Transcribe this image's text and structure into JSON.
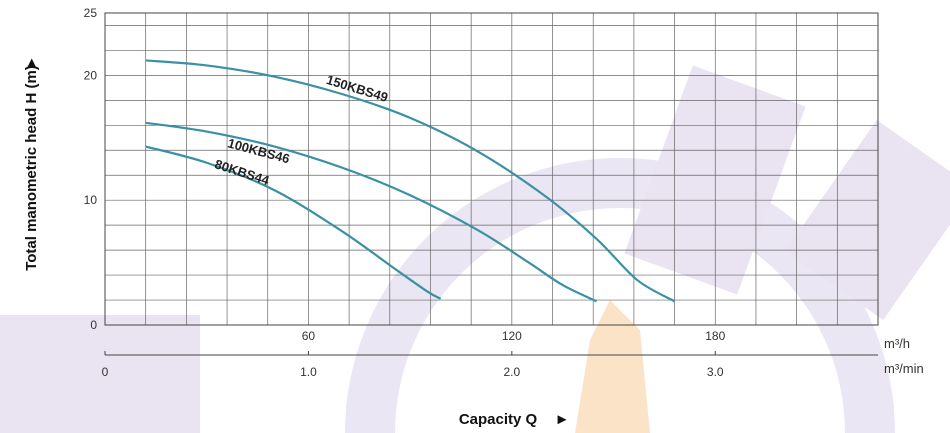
{
  "chart_data": {
    "type": "line",
    "title": "",
    "ylabel": "Total manometric head H (m)",
    "xlabel": "Capacity Q",
    "ylim": [
      0,
      25
    ],
    "yticks": [
      0,
      10,
      20,
      25
    ],
    "xlim": [
      0,
      228
    ],
    "xticks": [
      60,
      120,
      180
    ],
    "x_unit": "m³/h",
    "x2_unit": "m³/min",
    "x2lim": [
      0,
      3.8
    ],
    "x2ticks": [
      0,
      1.0,
      2.0,
      3.0
    ],
    "x2tick_labels": [
      "0",
      "1.0",
      "2.0",
      "3.0"
    ],
    "grid": true,
    "series": [
      {
        "name": "150KBS49",
        "x": [
          12,
          30,
          50,
          70,
          90,
          110,
          130,
          145,
          157,
          168
        ],
        "y": [
          21.2,
          20.8,
          19.9,
          18.5,
          16.6,
          13.9,
          10.3,
          6.9,
          3.6,
          1.9
        ]
      },
      {
        "name": "100KBS46",
        "x": [
          12,
          30,
          50,
          70,
          90,
          110,
          125,
          135,
          145
        ],
        "y": [
          16.2,
          15.5,
          14.3,
          12.6,
          10.4,
          7.6,
          5.0,
          3.2,
          1.9
        ]
      },
      {
        "name": "80KBS44",
        "x": [
          12,
          30,
          50,
          70,
          85,
          95,
          99
        ],
        "y": [
          14.3,
          13.0,
          10.8,
          7.5,
          4.6,
          2.7,
          2.1
        ]
      }
    ],
    "colors": {
      "line": "#3a91a4",
      "grid": "#666666",
      "watermark": "#e9e3f2"
    }
  },
  "arrow_glyph": "►"
}
